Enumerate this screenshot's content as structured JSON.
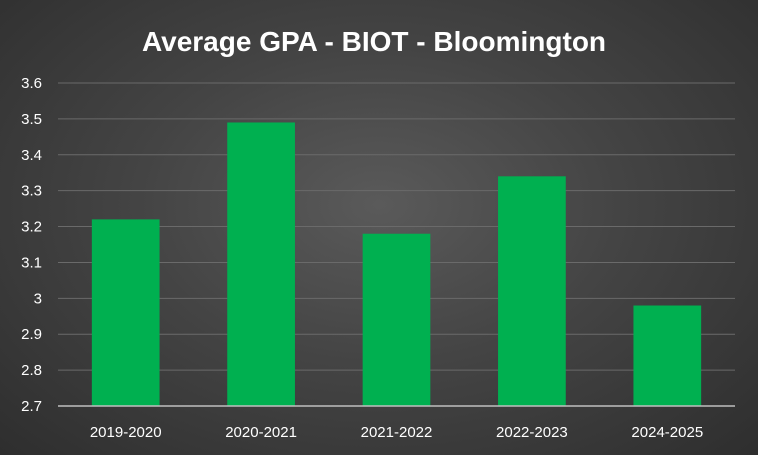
{
  "chart_data": {
    "type": "bar",
    "title": "Average GPA - BIOT - Bloomington",
    "xlabel": "",
    "ylabel": "",
    "categories": [
      "2019-2020",
      "2020-2021",
      "2021-2022",
      "2022-2023",
      "2024-2025"
    ],
    "values": [
      3.22,
      3.49,
      3.18,
      3.34,
      2.98
    ],
    "ylim": [
      2.7,
      3.6
    ],
    "y_ticks": [
      "2.7",
      "2.8",
      "2.9",
      "3",
      "3.1",
      "3.2",
      "3.3",
      "3.4",
      "3.5",
      "3.6"
    ],
    "grid": true,
    "legend": "none",
    "bar_color": "#00b050",
    "background_color": "#444444"
  }
}
